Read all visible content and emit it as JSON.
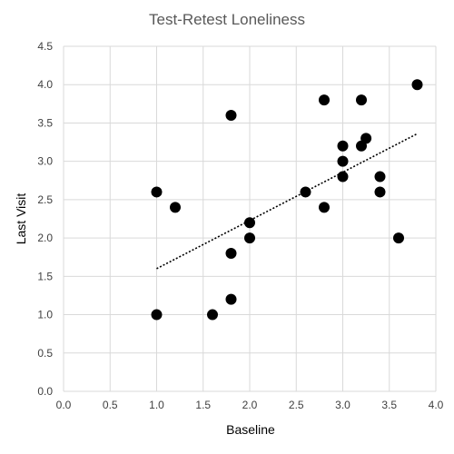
{
  "chart_data": {
    "type": "scatter",
    "title": "Test-Retest Loneliness",
    "xlabel": "Baseline",
    "ylabel": "Last Visit",
    "xlim": [
      0,
      4
    ],
    "ylim": [
      0,
      4.5
    ],
    "x_ticks": [
      "0.0",
      "0.5",
      "1.0",
      "1.5",
      "2.0",
      "2.5",
      "3.0",
      "3.5",
      "4.0"
    ],
    "y_ticks": [
      "0.0",
      "0.5",
      "1.0",
      "1.5",
      "2.0",
      "2.5",
      "3.0",
      "3.5",
      "4.0",
      "4.5"
    ],
    "grid": true,
    "legend": "none",
    "point_color": "#000000",
    "series": [
      {
        "points": [
          {
            "x": 1.0,
            "y": 2.6
          },
          {
            "x": 1.0,
            "y": 1.0
          },
          {
            "x": 1.2,
            "y": 2.4
          },
          {
            "x": 1.6,
            "y": 1.0
          },
          {
            "x": 1.8,
            "y": 3.6
          },
          {
            "x": 1.8,
            "y": 1.8
          },
          {
            "x": 1.8,
            "y": 1.2
          },
          {
            "x": 2.0,
            "y": 2.2
          },
          {
            "x": 2.0,
            "y": 2.0
          },
          {
            "x": 2.6,
            "y": 2.6
          },
          {
            "x": 2.8,
            "y": 3.8
          },
          {
            "x": 2.8,
            "y": 2.4
          },
          {
            "x": 3.0,
            "y": 3.2
          },
          {
            "x": 3.0,
            "y": 3.0
          },
          {
            "x": 3.0,
            "y": 2.8
          },
          {
            "x": 3.2,
            "y": 3.8
          },
          {
            "x": 3.2,
            "y": 3.2
          },
          {
            "x": 3.25,
            "y": 3.3
          },
          {
            "x": 3.4,
            "y": 2.8
          },
          {
            "x": 3.4,
            "y": 2.6
          },
          {
            "x": 3.6,
            "y": 2.0
          },
          {
            "x": 3.8,
            "y": 4.0
          }
        ]
      }
    ],
    "trendline": {
      "style": "dotted",
      "x_start": 1.0,
      "y_start": 1.6,
      "x_end": 3.8,
      "y_end": 3.36
    }
  }
}
